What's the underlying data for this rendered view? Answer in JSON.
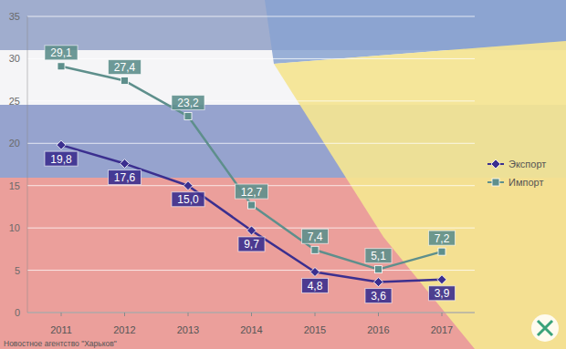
{
  "chart_data": {
    "type": "line",
    "categories": [
      "2011",
      "2012",
      "2013",
      "2014",
      "2015",
      "2016",
      "2017"
    ],
    "series": [
      {
        "name": "Экспорт",
        "color": "#3b2f8f",
        "marker": "diamond",
        "values": [
          19.8,
          17.6,
          15.0,
          9.7,
          4.8,
          3.6,
          3.9
        ],
        "value_labels": [
          "19,8",
          "17,6",
          "15,0",
          "9,7",
          "4,8",
          "3,6",
          "3,9"
        ]
      },
      {
        "name": "Импорт",
        "color": "#5e8f8c",
        "marker": "square",
        "values": [
          29.1,
          27.4,
          23.2,
          12.7,
          7.4,
          5.1,
          7.2
        ],
        "value_labels": [
          "29,1",
          "27,4",
          "23,2",
          "12,7",
          "7,4",
          "5,1",
          "7,2"
        ]
      }
    ],
    "ylim": [
      0,
      35
    ],
    "yticks": [
      0,
      5,
      10,
      15,
      20,
      25,
      30,
      35
    ],
    "grid": true,
    "legend": "right",
    "data_labels": true,
    "source": "Новостное агентство \"Харьков\""
  }
}
